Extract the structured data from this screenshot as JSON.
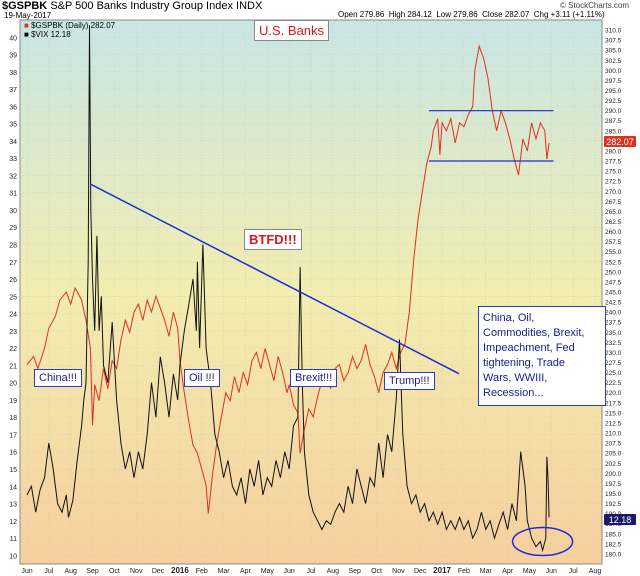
{
  "header": {
    "symbol": "$GSPBK",
    "description": "S&P 500 Banks Industry Group Index",
    "exchange": "INDX",
    "date": "19-May-2017",
    "quote": {
      "open": "Open 279.86",
      "high": "High 284.12",
      "low": "Low 279.86",
      "close": "Close 282.07",
      "chg": "Chg +3.11 (+1.11%)"
    },
    "copyright": "© StockCharts.com",
    "legend_main": "$GSPBK (Daily) 282.07",
    "legend_vix": "$VIX 12.18"
  },
  "annotations": {
    "title": "U.S. Banks",
    "btfd": "BTFD!!!",
    "china": "China!!!",
    "oil": "Oil !!!",
    "brexit": "Brexit!!!",
    "trump": "Trump!!!",
    "note_lines": [
      "China, Oil,",
      "Commodities, Brexit,",
      "Impeachment, Fed",
      "tightening, Trade",
      "Wars, WWIII,",
      "Recession..."
    ]
  },
  "colors": {
    "gspbk": "#e0301e",
    "vix": "#111111",
    "trend": "#1f2bd6",
    "box_border": "#2a3cc8",
    "title_red": "#d8181e",
    "last_vix_bg": "#1a1a6a",
    "last_gspbk_bg": "#e0301e",
    "bg_top": "#c8e6e4",
    "bg_mid": "#f2edb0",
    "bg_bottom": "#f6cf9f"
  },
  "chart_data": {
    "type": "line",
    "x_months": [
      "Jun",
      "Jul",
      "Aug",
      "Sep",
      "Oct",
      "Nov",
      "Dec",
      "2016",
      "Feb",
      "Mar",
      "Apr",
      "May",
      "Jun",
      "Jul",
      "Aug",
      "Sep",
      "Oct",
      "Nov",
      "Dec",
      "2017",
      "Feb",
      "Mar",
      "Apr",
      "May",
      "Jun",
      "Jul",
      "Aug"
    ],
    "left_axis": {
      "name": "$VIX",
      "range": [
        9.5,
        41
      ],
      "ticks": [
        10,
        11,
        12,
        13,
        14,
        15,
        16,
        17,
        18,
        19,
        20,
        21,
        22,
        23,
        24,
        25,
        26,
        27,
        28,
        29,
        30,
        31,
        32,
        33,
        34,
        35,
        36,
        37,
        38,
        39,
        40
      ]
    },
    "right_axis": {
      "name": "$GSPBK",
      "range": [
        177.5,
        312.5
      ],
      "step": 2.5
    },
    "series": [
      {
        "name": "$GSPBK",
        "axis": "right",
        "points": [
          [
            0,
            227
          ],
          [
            0.3,
            229
          ],
          [
            0.5,
            226
          ],
          [
            0.8,
            231
          ],
          [
            1.0,
            236
          ],
          [
            1.3,
            239
          ],
          [
            1.5,
            243
          ],
          [
            1.8,
            245
          ],
          [
            2.0,
            242
          ],
          [
            2.2,
            246
          ],
          [
            2.5,
            243
          ],
          [
            2.7,
            238
          ],
          [
            2.9,
            231
          ],
          [
            3.0,
            212
          ],
          [
            3.1,
            222
          ],
          [
            3.3,
            218
          ],
          [
            3.5,
            226
          ],
          [
            3.7,
            221
          ],
          [
            3.9,
            228
          ],
          [
            4.1,
            226
          ],
          [
            4.3,
            233
          ],
          [
            4.5,
            238
          ],
          [
            4.7,
            235
          ],
          [
            4.9,
            240
          ],
          [
            5.1,
            242
          ],
          [
            5.3,
            238
          ],
          [
            5.5,
            243
          ],
          [
            5.7,
            240
          ],
          [
            5.9,
            244
          ],
          [
            6.1,
            241
          ],
          [
            6.3,
            238
          ],
          [
            6.5,
            234
          ],
          [
            6.7,
            240
          ],
          [
            6.9,
            236
          ],
          [
            7.0,
            228
          ],
          [
            7.2,
            220
          ],
          [
            7.4,
            213
          ],
          [
            7.6,
            207
          ],
          [
            7.8,
            205
          ],
          [
            8.0,
            201
          ],
          [
            8.2,
            197
          ],
          [
            8.3,
            190
          ],
          [
            8.5,
            200
          ],
          [
            8.7,
            208
          ],
          [
            8.9,
            214
          ],
          [
            9.1,
            220
          ],
          [
            9.3,
            218
          ],
          [
            9.5,
            224
          ],
          [
            9.7,
            220
          ],
          [
            9.9,
            225
          ],
          [
            10.1,
            222
          ],
          [
            10.3,
            228
          ],
          [
            10.5,
            230
          ],
          [
            10.7,
            226
          ],
          [
            10.9,
            231
          ],
          [
            11.1,
            227
          ],
          [
            11.3,
            223
          ],
          [
            11.5,
            229
          ],
          [
            11.7,
            225
          ],
          [
            11.9,
            220
          ],
          [
            12.0,
            222
          ],
          [
            12.2,
            217
          ],
          [
            12.4,
            215
          ],
          [
            12.5,
            205
          ],
          [
            12.7,
            211
          ],
          [
            12.9,
            216
          ],
          [
            13.1,
            214
          ],
          [
            13.3,
            219
          ],
          [
            13.5,
            223
          ],
          [
            13.7,
            225
          ],
          [
            13.9,
            221
          ],
          [
            14.1,
            226
          ],
          [
            14.3,
            227
          ],
          [
            14.5,
            223
          ],
          [
            14.7,
            225
          ],
          [
            14.9,
            229
          ],
          [
            15.1,
            226
          ],
          [
            15.3,
            228
          ],
          [
            15.5,
            232
          ],
          [
            15.7,
            227
          ],
          [
            15.9,
            224
          ],
          [
            16.1,
            220
          ],
          [
            16.3,
            225
          ],
          [
            16.5,
            227
          ],
          [
            16.7,
            230
          ],
          [
            16.9,
            226
          ],
          [
            17.1,
            230
          ],
          [
            17.3,
            232
          ],
          [
            17.5,
            240
          ],
          [
            17.7,
            253
          ],
          [
            17.9,
            263
          ],
          [
            18.1,
            270
          ],
          [
            18.3,
            277
          ],
          [
            18.5,
            281
          ],
          [
            18.6,
            285
          ],
          [
            18.8,
            288
          ],
          [
            18.9,
            279
          ],
          [
            19.0,
            287
          ],
          [
            19.2,
            285
          ],
          [
            19.4,
            288
          ],
          [
            19.6,
            282
          ],
          [
            19.8,
            287
          ],
          [
            20.0,
            286
          ],
          [
            20.2,
            289
          ],
          [
            20.4,
            291
          ],
          [
            20.5,
            300
          ],
          [
            20.7,
            306
          ],
          [
            20.9,
            303
          ],
          [
            21.1,
            298
          ],
          [
            21.3,
            290
          ],
          [
            21.5,
            285
          ],
          [
            21.7,
            290
          ],
          [
            21.9,
            287
          ],
          [
            22.1,
            283
          ],
          [
            22.3,
            278
          ],
          [
            22.5,
            274
          ],
          [
            22.7,
            283
          ],
          [
            22.9,
            280
          ],
          [
            23.1,
            287
          ],
          [
            23.3,
            283
          ],
          [
            23.5,
            287
          ],
          [
            23.7,
            285
          ],
          [
            23.8,
            278
          ],
          [
            23.9,
            282
          ]
        ]
      },
      {
        "name": "$VIX",
        "axis": "left",
        "points": [
          [
            0,
            13.5
          ],
          [
            0.2,
            14.0
          ],
          [
            0.4,
            12.5
          ],
          [
            0.6,
            13.8
          ],
          [
            0.8,
            14.5
          ],
          [
            1.0,
            16.5
          ],
          [
            1.2,
            15.0
          ],
          [
            1.4,
            13.0
          ],
          [
            1.6,
            12.5
          ],
          [
            1.8,
            13.5
          ],
          [
            1.9,
            12.2
          ],
          [
            2.1,
            13.2
          ],
          [
            2.3,
            15.5
          ],
          [
            2.5,
            17.5
          ],
          [
            2.6,
            19.0
          ],
          [
            2.7,
            20.0
          ],
          [
            2.8,
            27.0
          ],
          [
            2.86,
            40.7
          ],
          [
            2.92,
            30.0
          ],
          [
            3.0,
            26.0
          ],
          [
            3.1,
            23.0
          ],
          [
            3.2,
            28.5
          ],
          [
            3.3,
            23.0
          ],
          [
            3.4,
            25.0
          ],
          [
            3.5,
            21.0
          ],
          [
            3.7,
            20.0
          ],
          [
            3.9,
            23.5
          ],
          [
            4.1,
            19.0
          ],
          [
            4.3,
            16.5
          ],
          [
            4.5,
            15.0
          ],
          [
            4.7,
            16.0
          ],
          [
            4.9,
            14.5
          ],
          [
            5.1,
            16.0
          ],
          [
            5.3,
            15.0
          ],
          [
            5.5,
            17.0
          ],
          [
            5.7,
            20.0
          ],
          [
            5.9,
            18.0
          ],
          [
            6.1,
            21.5
          ],
          [
            6.3,
            20.0
          ],
          [
            6.5,
            18.0
          ],
          [
            6.7,
            20.5
          ],
          [
            6.9,
            19.0
          ],
          [
            7.0,
            21.0
          ],
          [
            7.2,
            23.0
          ],
          [
            7.4,
            24.5
          ],
          [
            7.6,
            26.0
          ],
          [
            7.75,
            23.0
          ],
          [
            7.8,
            27.0
          ],
          [
            7.9,
            22.0
          ],
          [
            8.05,
            28.0
          ],
          [
            8.2,
            22.0
          ],
          [
            8.4,
            20.0
          ],
          [
            8.6,
            17.0
          ],
          [
            8.8,
            16.0
          ],
          [
            9.0,
            14.5
          ],
          [
            9.2,
            15.5
          ],
          [
            9.4,
            14.0
          ],
          [
            9.6,
            13.5
          ],
          [
            9.8,
            14.5
          ],
          [
            10.0,
            13.0
          ],
          [
            10.2,
            15.0
          ],
          [
            10.4,
            14.0
          ],
          [
            10.6,
            15.5
          ],
          [
            10.8,
            13.5
          ],
          [
            11.0,
            14.5
          ],
          [
            11.2,
            14.0
          ],
          [
            11.4,
            15.5
          ],
          [
            11.6,
            14.5
          ],
          [
            11.8,
            16.0
          ],
          [
            12.0,
            15.0
          ],
          [
            12.2,
            17.5
          ],
          [
            12.4,
            18.0
          ],
          [
            12.5,
            26.7
          ],
          [
            12.6,
            20.0
          ],
          [
            12.7,
            16.0
          ],
          [
            12.9,
            13.5
          ],
          [
            13.1,
            12.5
          ],
          [
            13.3,
            12.0
          ],
          [
            13.5,
            11.5
          ],
          [
            13.7,
            12.0
          ],
          [
            13.9,
            11.8
          ],
          [
            14.1,
            12.5
          ],
          [
            14.3,
            13.0
          ],
          [
            14.5,
            12.5
          ],
          [
            14.7,
            14.0
          ],
          [
            14.9,
            13.0
          ],
          [
            15.1,
            15.0
          ],
          [
            15.3,
            14.0
          ],
          [
            15.5,
            13.0
          ],
          [
            15.7,
            14.5
          ],
          [
            15.9,
            14.0
          ],
          [
            16.1,
            16.5
          ],
          [
            16.3,
            14.5
          ],
          [
            16.5,
            17.0
          ],
          [
            16.7,
            16.0
          ],
          [
            16.9,
            19.0
          ],
          [
            17.05,
            22.5
          ],
          [
            17.2,
            17.0
          ],
          [
            17.4,
            14.0
          ],
          [
            17.6,
            13.0
          ],
          [
            17.8,
            13.5
          ],
          [
            18.0,
            12.5
          ],
          [
            18.2,
            13.0
          ],
          [
            18.4,
            12.0
          ],
          [
            18.6,
            12.5
          ],
          [
            18.8,
            11.8
          ],
          [
            19.0,
            12.5
          ],
          [
            19.2,
            11.5
          ],
          [
            19.4,
            12.0
          ],
          [
            19.6,
            11.5
          ],
          [
            19.8,
            12.2
          ],
          [
            20.0,
            11.5
          ],
          [
            20.2,
            12.0
          ],
          [
            20.4,
            11.0
          ],
          [
            20.6,
            11.5
          ],
          [
            20.8,
            12.5
          ],
          [
            21.0,
            11.5
          ],
          [
            21.2,
            12.0
          ],
          [
            21.4,
            11.0
          ],
          [
            21.6,
            11.8
          ],
          [
            21.8,
            12.5
          ],
          [
            22.0,
            11.5
          ],
          [
            22.2,
            13.0
          ],
          [
            22.4,
            12.0
          ],
          [
            22.6,
            16.0
          ],
          [
            22.7,
            15.0
          ],
          [
            22.8,
            14.0
          ],
          [
            22.9,
            12.0
          ],
          [
            23.1,
            11.0
          ],
          [
            23.3,
            10.5
          ],
          [
            23.5,
            10.8
          ],
          [
            23.6,
            10.3
          ],
          [
            23.75,
            11.0
          ],
          [
            23.8,
            15.7
          ],
          [
            23.85,
            14.5
          ],
          [
            23.9,
            12.2
          ]
        ]
      }
    ],
    "trendline": {
      "axis": "left",
      "points": [
        [
          2.9,
          31.5
        ],
        [
          18.4,
          21.1
        ]
      ]
    },
    "channel_lines": {
      "axis": "right",
      "upper": 290,
      "lower": 277.5,
      "x_range": [
        18.4,
        24.1
      ]
    },
    "ellipse_annotation": {
      "center": [
        23.6,
        10.8
      ]
    },
    "last_values": {
      "vix": "12.18",
      "gspbk": "282.07"
    }
  }
}
